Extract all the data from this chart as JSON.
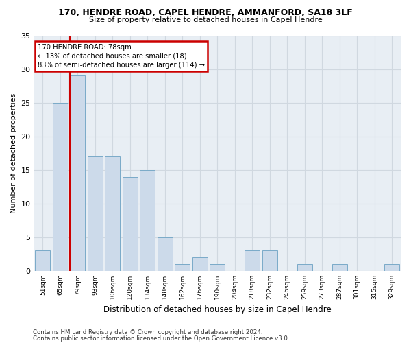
{
  "title1": "170, HENDRE ROAD, CAPEL HENDRE, AMMANFORD, SA18 3LF",
  "title2": "Size of property relative to detached houses in Capel Hendre",
  "xlabel": "Distribution of detached houses by size in Capel Hendre",
  "ylabel": "Number of detached properties",
  "categories": [
    "51sqm",
    "65sqm",
    "79sqm",
    "93sqm",
    "106sqm",
    "120sqm",
    "134sqm",
    "148sqm",
    "162sqm",
    "176sqm",
    "190sqm",
    "204sqm",
    "218sqm",
    "232sqm",
    "246sqm",
    "259sqm",
    "273sqm",
    "287sqm",
    "301sqm",
    "315sqm",
    "329sqm"
  ],
  "values": [
    3,
    25,
    29,
    17,
    17,
    14,
    15,
    5,
    1,
    2,
    1,
    0,
    3,
    3,
    0,
    1,
    0,
    1,
    0,
    0,
    1
  ],
  "bar_color": "#ccdaea",
  "bar_edge_color": "#7aaac8",
  "grid_color": "#d0d8e0",
  "vline_color": "#cc0000",
  "annotation_text": "170 HENDRE ROAD: 78sqm\n← 13% of detached houses are smaller (18)\n83% of semi-detached houses are larger (114) →",
  "annotation_box_color": "#cc0000",
  "ylim": [
    0,
    35
  ],
  "yticks": [
    0,
    5,
    10,
    15,
    20,
    25,
    30,
    35
  ],
  "footer1": "Contains HM Land Registry data © Crown copyright and database right 2024.",
  "footer2": "Contains public sector information licensed under the Open Government Licence v3.0.",
  "plot_bg_color": "#e8eef4"
}
